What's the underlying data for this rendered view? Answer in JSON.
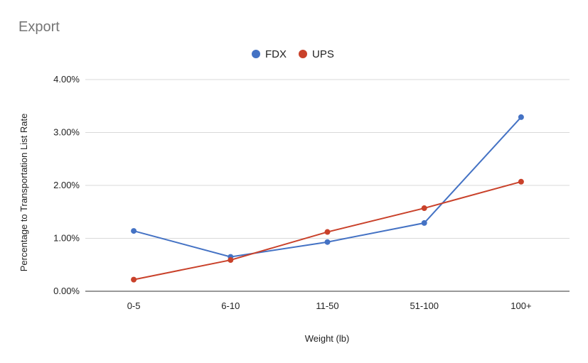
{
  "chart_data": {
    "type": "line",
    "title": "Export",
    "xlabel": "Weight (lb)",
    "ylabel": "Percentage to Transportation List Rate",
    "categories": [
      "0-5",
      "6-10",
      "11-50",
      "51-100",
      "100+"
    ],
    "series": [
      {
        "name": "FDX",
        "color": "#4472C4",
        "values": [
          1.14,
          0.65,
          0.93,
          1.29,
          3.29
        ]
      },
      {
        "name": "UPS",
        "color": "#C9412A",
        "values": [
          0.22,
          0.59,
          1.12,
          1.57,
          2.07
        ]
      }
    ],
    "ylim": [
      0,
      4
    ],
    "yticks": [
      0,
      1,
      2,
      3,
      4
    ],
    "ytick_labels": [
      "0.00%",
      "1.00%",
      "2.00%",
      "3.00%",
      "4.00%"
    ],
    "grid": true,
    "legend": "top-center"
  }
}
